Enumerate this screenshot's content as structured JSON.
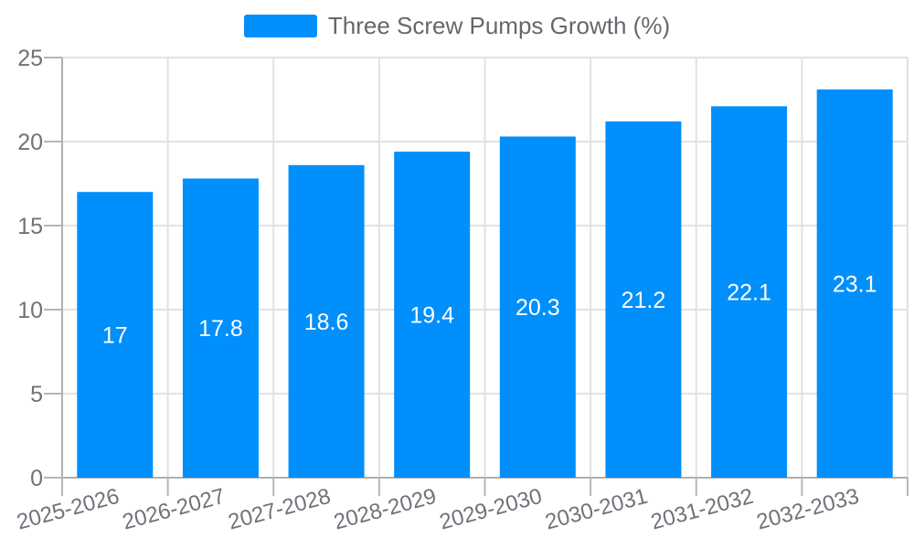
{
  "chart_data": {
    "type": "bar",
    "title": "",
    "legend": {
      "position": "top",
      "label": "Three Screw Pumps Growth (%)"
    },
    "categories": [
      "2025-2026",
      "2026-2027",
      "2027-2028",
      "2028-2029",
      "2029-2030",
      "2030-2031",
      "2031-2032",
      "2032-2033"
    ],
    "series": [
      {
        "name": "Three Screw Pumps Growth (%)",
        "values": [
          17,
          17.8,
          18.6,
          19.4,
          20.3,
          21.2,
          22.1,
          23.1
        ]
      }
    ],
    "xlabel": "",
    "ylabel": "",
    "ylim": [
      0,
      25
    ],
    "yticks": [
      0,
      5,
      10,
      15,
      20,
      25
    ],
    "grid": true,
    "x_label_rotation": -15,
    "data_labels": {
      "visible": true,
      "position": "center",
      "color": "#ffffff"
    },
    "colors": {
      "bar": "#008FFB",
      "grid_line": "#e2e2e2",
      "axis_line": "#b0b0b0",
      "tick_mark": "#b6b6b6",
      "axis_label": "#6e7379",
      "legend_label": "#63686d",
      "background": "#ffffff"
    }
  }
}
